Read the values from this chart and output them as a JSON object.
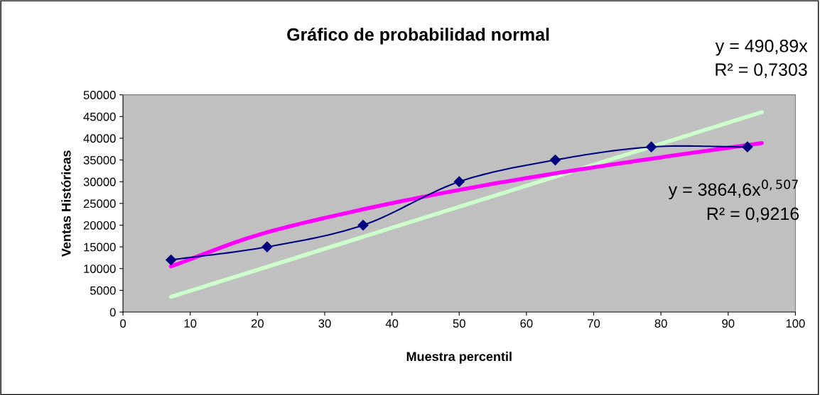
{
  "chart_data": {
    "type": "line",
    "title": "Gráfico de probabilidad normal",
    "xlabel": "Muestra percentil",
    "ylabel": "Ventas Históricas",
    "xlim": [
      0,
      100
    ],
    "xticks": [
      0,
      10,
      20,
      30,
      40,
      50,
      60,
      70,
      80,
      90,
      100
    ],
    "ylim": [
      0,
      50000
    ],
    "yticks": [
      0,
      5000,
      10000,
      15000,
      20000,
      25000,
      30000,
      35000,
      40000,
      45000,
      50000
    ],
    "grid": false,
    "legend": false,
    "series": [
      {
        "color": "#ccffcc",
        "x": [
          7.14,
          95
        ],
        "values": [
          3500,
          46000
        ],
        "marker": "none"
      },
      {
        "color": "#ff00ff",
        "x": [
          7.14,
          20,
          35,
          50,
          65,
          80,
          95
        ],
        "values": [
          10500,
          17700,
          23400,
          28100,
          32100,
          35600,
          38900
        ],
        "marker": "none"
      },
      {
        "color": "#000080",
        "x": [
          7.14,
          21.43,
          35.71,
          50,
          64.29,
          78.57,
          92.86
        ],
        "values": [
          12000,
          15000,
          20000,
          30000,
          35000,
          38000,
          38000
        ],
        "marker": "diamond"
      }
    ],
    "annotations": [
      "y = 490,89x",
      "R² = 0,7303",
      "y = 3864,6x$^{0,507}$",
      "R² = 0,9216"
    ]
  }
}
